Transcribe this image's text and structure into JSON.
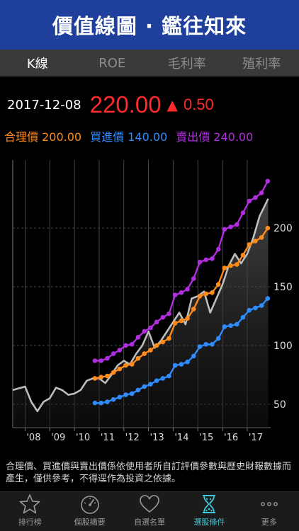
{
  "header": {
    "title": "價值線圖 · 鑑往知來"
  },
  "tabs": [
    {
      "label": "K線",
      "active": true
    },
    {
      "label": "ROE",
      "active": false
    },
    {
      "label": "毛利率",
      "active": false
    },
    {
      "label": "殖利率",
      "active": false
    }
  ],
  "quote": {
    "date": "2017-12-08",
    "price": "220.00",
    "change_icon": "triangle-up-icon",
    "change": "0.50",
    "color": "#ff2a2a"
  },
  "legend": {
    "fair": {
      "label": "合理價",
      "value": "200.00",
      "color": "#ff8c1a"
    },
    "buy": {
      "label": "買進價",
      "value": "140.00",
      "color": "#2f8cff"
    },
    "sell": {
      "label": "賣出價",
      "value": "240.00",
      "color": "#b02de0"
    }
  },
  "chart_data": {
    "type": "line",
    "x_ticks": [
      "'08",
      "'09",
      "'10",
      "'11",
      "'12",
      "'13",
      "'14",
      "'15",
      "'16",
      "'17"
    ],
    "y_ticks": [
      50,
      100,
      150,
      200
    ],
    "xlim": [
      2007.5,
      2017.95
    ],
    "ylim": [
      30,
      258
    ],
    "grid": true,
    "legend_position": "top",
    "series": [
      {
        "name": "合理價",
        "color": "#ff8c1a",
        "x": [
          2010.83,
          2011.08,
          2011.33,
          2011.58,
          2011.83,
          2012.08,
          2012.33,
          2012.58,
          2012.83,
          2013.08,
          2013.33,
          2013.58,
          2013.83,
          2014.08,
          2014.33,
          2014.58,
          2014.83,
          2015.08,
          2015.33,
          2015.58,
          2015.83,
          2016.08,
          2016.33,
          2016.58,
          2016.83,
          2017.08,
          2017.33,
          2017.58,
          2017.83
        ],
        "y": [
          72,
          73,
          74,
          77,
          80,
          83,
          84,
          89,
          93,
          96,
          100,
          103,
          106,
          119,
          121,
          123,
          131,
          142,
          144,
          145,
          152,
          166,
          168,
          169,
          177,
          186,
          189,
          192,
          200
        ]
      },
      {
        "name": "買進價",
        "color": "#2f8cff",
        "x": [
          2010.83,
          2011.08,
          2011.33,
          2011.58,
          2011.83,
          2012.08,
          2012.33,
          2012.58,
          2012.83,
          2013.08,
          2013.33,
          2013.58,
          2013.83,
          2014.08,
          2014.33,
          2014.58,
          2014.83,
          2015.08,
          2015.33,
          2015.58,
          2015.83,
          2016.08,
          2016.33,
          2016.58,
          2016.83,
          2017.08,
          2017.33,
          2017.58,
          2017.83
        ],
        "y": [
          51,
          51,
          52,
          54,
          56,
          58,
          59,
          62,
          65,
          67,
          70,
          72,
          74,
          83,
          84,
          86,
          91,
          99,
          101,
          101,
          106,
          116,
          117,
          118,
          124,
          130,
          132,
          134,
          140
        ]
      },
      {
        "name": "賣出價",
        "color": "#b02de0",
        "x": [
          2010.83,
          2011.08,
          2011.33,
          2011.58,
          2011.83,
          2012.08,
          2012.33,
          2012.58,
          2012.83,
          2013.08,
          2013.33,
          2013.58,
          2013.83,
          2014.08,
          2014.33,
          2014.58,
          2014.83,
          2015.08,
          2015.33,
          2015.58,
          2015.83,
          2016.08,
          2016.33,
          2016.58,
          2016.83,
          2017.08,
          2017.33,
          2017.58,
          2017.83
        ],
        "y": [
          87,
          87,
          89,
          93,
          96,
          100,
          101,
          107,
          112,
          115,
          120,
          124,
          127,
          143,
          145,
          148,
          157,
          171,
          173,
          174,
          182,
          199,
          201,
          203,
          213,
          223,
          226,
          230,
          240
        ]
      },
      {
        "name": "股價",
        "color": "#bdbdbd",
        "x": [
          2007.5,
          2008.0,
          2008.25,
          2008.5,
          2008.75,
          2009.0,
          2009.25,
          2009.5,
          2009.75,
          2010.0,
          2010.25,
          2010.5,
          2010.75,
          2011.0,
          2011.25,
          2011.5,
          2011.75,
          2012.0,
          2012.25,
          2012.5,
          2012.75,
          2013.0,
          2013.25,
          2013.5,
          2013.75,
          2014.0,
          2014.25,
          2014.5,
          2014.75,
          2015.0,
          2015.25,
          2015.5,
          2015.75,
          2016.0,
          2016.25,
          2016.5,
          2016.75,
          2017.0,
          2017.25,
          2017.5,
          2017.85
        ],
        "y": [
          62,
          65,
          52,
          44,
          52,
          55,
          64,
          62,
          58,
          59,
          62,
          70,
          72,
          72,
          68,
          75,
          83,
          87,
          84,
          93,
          100,
          112,
          98,
          104,
          112,
          120,
          128,
          118,
          140,
          142,
          146,
          128,
          140,
          152,
          168,
          178,
          170,
          178,
          192,
          210,
          225
        ]
      }
    ]
  },
  "note": "合理價、買進價與賣出價係依使用者所自訂評價參數與歷史財報數據而產生，僅供參考，不得逕作為投資之依據。",
  "tabbar": [
    {
      "label": "排行榜",
      "icon": "star-icon",
      "active": false
    },
    {
      "label": "個股摘要",
      "icon": "gauge-icon",
      "active": false
    },
    {
      "label": "自選名單",
      "icon": "heart-icon",
      "active": false
    },
    {
      "label": "選股條件",
      "icon": "hourglass-icon",
      "active": true
    },
    {
      "label": "更多",
      "icon": "more-icon",
      "active": false
    }
  ]
}
